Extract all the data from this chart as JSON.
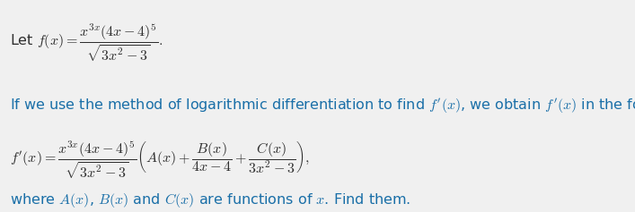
{
  "background_color": "#f0f0f0",
  "text_color": "#2e2e2e",
  "blue_color": "#1a6fa8",
  "fig_width": 7.07,
  "fig_height": 2.37,
  "font_size": 11.5
}
